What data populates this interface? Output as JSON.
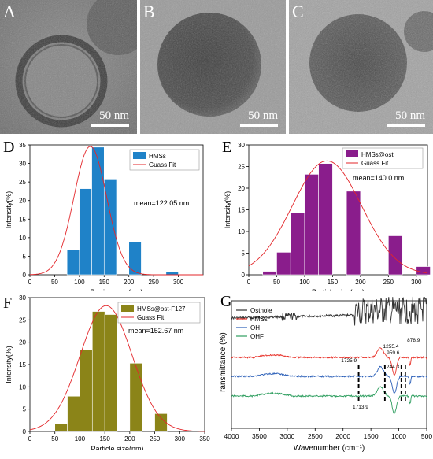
{
  "tem_panels": [
    {
      "letter": "A",
      "scale_label": "50 nm"
    },
    {
      "letter": "B",
      "scale_label": "50 nm"
    },
    {
      "letter": "C",
      "scale_label": "50 nm"
    }
  ],
  "chart_data": [
    {
      "letter": "D",
      "type": "bar",
      "xlabel": "Particle size(nm)",
      "ylabel": "Intensity(%)",
      "xlim": [
        0,
        350
      ],
      "ylim": [
        0,
        35
      ],
      "xticks": [
        "0",
        "50",
        "100",
        "150",
        "200",
        "250",
        "300"
      ],
      "yticks": [
        "0",
        "5",
        "10",
        "15",
        "20",
        "25",
        "30",
        "35"
      ],
      "bin_width": 25,
      "bar_color": "#1f82c8",
      "series": [
        {
          "name": "HMSs",
          "bins": [
            25,
            50,
            75,
            100,
            125,
            150,
            175,
            200,
            225,
            250,
            275
          ],
          "values": [
            0,
            0,
            6.7,
            23.2,
            34.4,
            25.8,
            0,
            8.9,
            0,
            0,
            0.8
          ]
        }
      ],
      "fit_name": "Guass Fit",
      "fit": {
        "mean": 122.05,
        "sigma": 33,
        "peak": 34.6
      },
      "annotation": "mean=122.05 nm"
    },
    {
      "letter": "E",
      "type": "bar",
      "xlabel": "Particle size(nm)",
      "ylabel": "Intensity(%)",
      "xlim": [
        0,
        320
      ],
      "ylim": [
        0,
        30
      ],
      "xticks": [
        "0",
        "50",
        "100",
        "150",
        "200",
        "250",
        "300"
      ],
      "yticks": [
        "0",
        "5",
        "10",
        "15",
        "20",
        "25",
        "30"
      ],
      "bin_width": 25,
      "bar_color": "#8a1d8c",
      "series": [
        {
          "name": "HMSs@ost",
          "bins": [
            0,
            25,
            50,
            75,
            100,
            125,
            150,
            175,
            200,
            225,
            250,
            275,
            300
          ],
          "values": [
            0,
            0.8,
            5.2,
            14.3,
            23.2,
            25.7,
            0,
            19.3,
            0,
            0,
            9.0,
            0,
            1.9
          ]
        }
      ],
      "fit_name": "Guass Fit",
      "fit": {
        "mean": 140.0,
        "sigma": 62,
        "peak": 26.3
      },
      "annotation": "mean=140.0 nm"
    },
    {
      "letter": "F",
      "type": "bar",
      "xlabel": "Particle size(nm)",
      "ylabel": "Intensity(%)",
      "xlim": [
        0,
        350
      ],
      "ylim": [
        0,
        30
      ],
      "xticks": [
        "0",
        "50",
        "100",
        "150",
        "200",
        "250",
        "300",
        "350"
      ],
      "yticks": [
        "0",
        "5",
        "10",
        "15",
        "20",
        "25",
        "30"
      ],
      "bin_width": 25,
      "bar_color": "#8b8418",
      "series": [
        {
          "name": "HMSs@ost-F127",
          "bins": [
            50,
            75,
            100,
            125,
            150,
            175,
            200,
            225,
            250,
            275
          ],
          "values": [
            1.8,
            7.9,
            18.3,
            26.9,
            26.2,
            0,
            15.3,
            0,
            4.0,
            0
          ]
        }
      ],
      "fit_name": "Guass Fit",
      "fit": {
        "mean": 152.67,
        "sigma": 52,
        "peak": 28.2
      },
      "annotation": "mean=152.67 nm"
    },
    {
      "letter": "G",
      "type": "line",
      "xlabel": "Wavenumber (cm⁻¹)",
      "ylabel": "Transmittance (%)",
      "xlim": [
        4000,
        500
      ],
      "xticks": [
        "4000",
        "3500",
        "3000",
        "2500",
        "2000",
        "1500",
        "1000",
        "500"
      ],
      "series": [
        {
          "name": "Osthole",
          "color": "#333333"
        },
        {
          "name": "HMSs",
          "color": "#e8332b"
        },
        {
          "name": "OH",
          "color": "#2b5fb8"
        },
        {
          "name": "OHF",
          "color": "#2e9e5f"
        }
      ],
      "annotations": [
        {
          "label": "1725.9",
          "x": 1725.9
        },
        {
          "label": "1255.4",
          "x": 1255.4
        },
        {
          "label": "1244.3",
          "x": 1244.3
        },
        {
          "label": "959.6",
          "x": 959.6
        },
        {
          "label": "878.9",
          "x": 878.9
        },
        {
          "label": "1713.9",
          "x": 1713.9
        }
      ]
    }
  ]
}
